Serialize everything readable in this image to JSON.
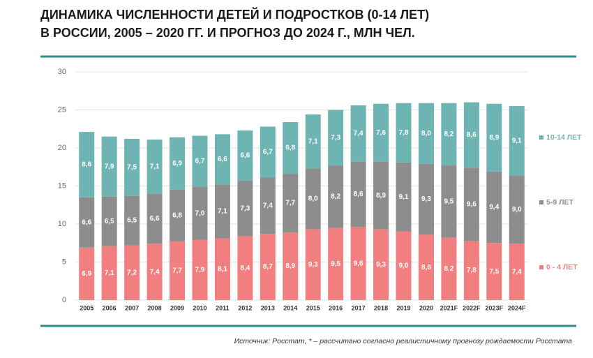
{
  "chart_data": {
    "type": "stacked_bar",
    "title": [
      "ДИНАМИКА ЧИСЛЕННОСТИ ДЕТЕЙ И ПОДРОСТКОВ (0-14 ЛЕТ)",
      "В РОССИИ, 2005 – 2020 ГГ. И ПРОГНОЗ ДО 2024 Г., МЛН ЧЕЛ."
    ],
    "source": "Источник: Росстат, * – рассчитано согласно реалистичному прогнозу рождаемости Росстата",
    "categories": [
      "2005",
      "2006",
      "2007",
      "2008",
      "2009",
      "2010",
      "2011",
      "2012",
      "2013",
      "2014",
      "2015",
      "2016",
      "2017",
      "2018",
      "2019",
      "2020",
      "2021F",
      "2022F",
      "2023F",
      "2024F"
    ],
    "series": [
      {
        "name": "0 - 4 ЛЕТ",
        "color": "#f27f80",
        "values": [
          6.9,
          7.1,
          7.2,
          7.4,
          7.7,
          7.9,
          8.1,
          8.4,
          8.7,
          8.9,
          9.3,
          9.5,
          9.6,
          9.3,
          9.0,
          8.6,
          8.2,
          7.8,
          7.5,
          7.4
        ],
        "value_labels": [
          "6,9",
          "7,1",
          "7,2",
          "7,4",
          "7,7",
          "7,9",
          "8,1",
          "8,4",
          "8,7",
          "8,9",
          "9,3",
          "9,5",
          "9,6",
          "9,3",
          "9,0",
          "8,6",
          "8,2",
          "7,8",
          "7,5",
          "7,4"
        ]
      },
      {
        "name": "5-9 ЛЕТ",
        "color": "#8d8d8d",
        "values": [
          6.6,
          6.5,
          6.5,
          6.6,
          6.8,
          7.0,
          7.1,
          7.3,
          7.4,
          7.7,
          8.0,
          8.2,
          8.6,
          8.9,
          9.1,
          9.3,
          9.5,
          9.6,
          9.4,
          9.0
        ],
        "value_labels": [
          "6,6",
          "6,5",
          "6,5",
          "6,6",
          "6,8",
          "7,0",
          "7,1",
          "7,3",
          "7,4",
          "7,7",
          "8,0",
          "8,2",
          "8,6",
          "8,9",
          "9,1",
          "9,3",
          "9,5",
          "9,6",
          "9,4",
          "9,0"
        ]
      },
      {
        "name": "10-14 ЛЕТ",
        "color": "#6db4b2",
        "values": [
          8.6,
          7.9,
          7.5,
          7.1,
          6.9,
          6.7,
          6.6,
          6.6,
          6.7,
          6.8,
          7.1,
          7.3,
          7.4,
          7.6,
          7.8,
          8.0,
          8.2,
          8.6,
          8.9,
          9.1
        ],
        "value_labels": [
          "8,6",
          "7,9",
          "7,5",
          "7,1",
          "6,9",
          "6,7",
          "6,6",
          "6,6",
          "6,7",
          "6,8",
          "7,1",
          "7,3",
          "7,4",
          "7,6",
          "7,8",
          "8,0",
          "8,2",
          "8,6",
          "8,9",
          "9,1"
        ]
      }
    ],
    "ylim": [
      0,
      30
    ],
    "yticks": [
      0,
      5,
      10,
      15,
      20,
      25,
      30
    ],
    "grid": true
  }
}
